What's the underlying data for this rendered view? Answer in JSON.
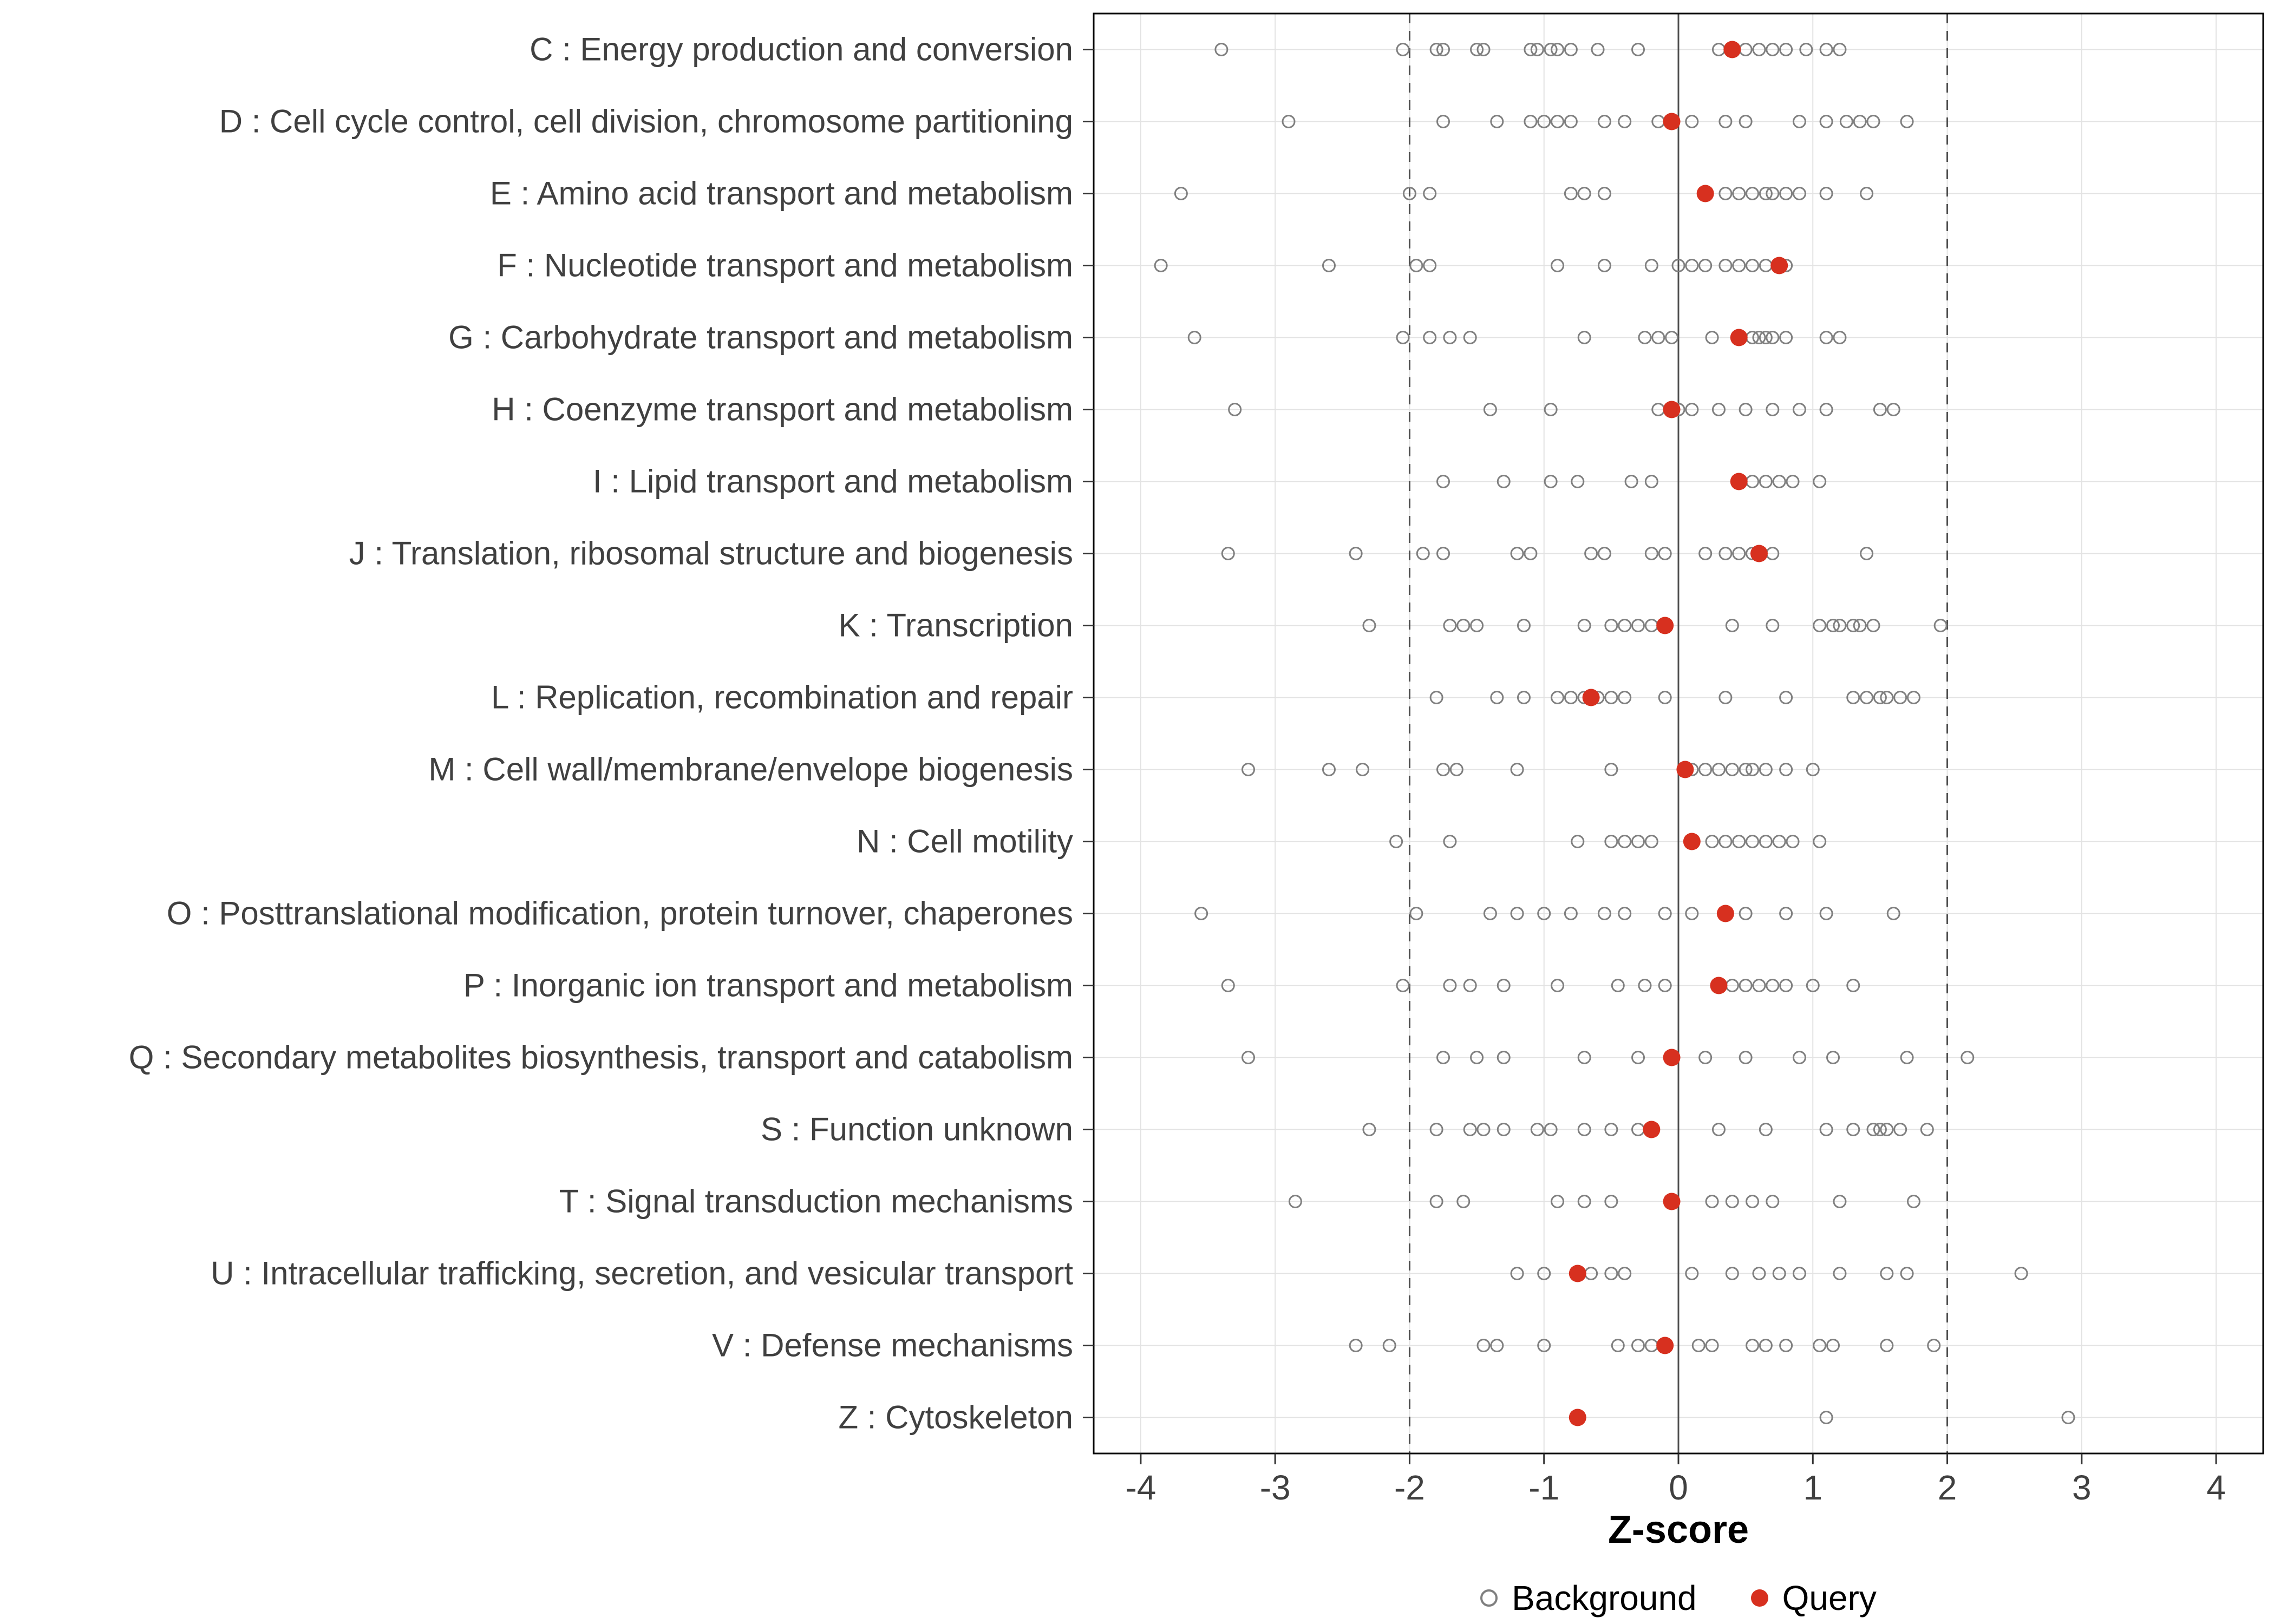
{
  "chart_data": {
    "type": "scatter",
    "variant": "strip-plot",
    "title": "",
    "xlabel": "Z-score",
    "xlim": [
      -4.35,
      4.35
    ],
    "xticks": [
      -4,
      -3,
      -2,
      -1,
      0,
      1,
      2,
      3,
      4
    ],
    "grid": true,
    "reference_lines": {
      "solid": [
        0
      ],
      "dashed": [
        -2,
        2
      ]
    },
    "legend": {
      "position": "bottom",
      "items": [
        {
          "label": "Background",
          "marker": "open-circle",
          "color": "#7F7F7F"
        },
        {
          "label": "Query",
          "marker": "filled-circle",
          "color": "#D7301F"
        }
      ]
    },
    "colors": {
      "background_point": "#7F7F7F",
      "query_point": "#D7301F",
      "grid": "#E3E3E3",
      "panel_border": "#000000",
      "reference": "#4D4D4D",
      "axis_text": "#404040",
      "tick": "#333333"
    },
    "rows": [
      {
        "label": "C : Energy production and conversion",
        "background": [
          -3.4,
          -2.05,
          -1.8,
          -1.75,
          -1.5,
          -1.45,
          -1.1,
          -1.05,
          -0.95,
          -0.9,
          -0.8,
          -0.6,
          -0.3,
          0.3,
          0.5,
          0.6,
          0.7,
          0.8,
          0.95,
          1.1,
          1.2
        ],
        "query": 0.4
      },
      {
        "label": "D : Cell cycle control, cell division, chromosome partitioning",
        "background": [
          -2.9,
          -1.75,
          -1.35,
          -1.1,
          -1.0,
          -0.9,
          -0.8,
          -0.55,
          -0.4,
          -0.15,
          0.1,
          0.35,
          0.5,
          0.9,
          1.1,
          1.25,
          1.35,
          1.45,
          1.7
        ],
        "query": -0.05
      },
      {
        "label": "E : Amino acid transport and metabolism",
        "background": [
          -3.7,
          -2.0,
          -1.85,
          -0.8,
          -0.7,
          -0.55,
          0.35,
          0.45,
          0.55,
          0.65,
          0.7,
          0.8,
          0.9,
          1.1,
          1.4
        ],
        "query": 0.2
      },
      {
        "label": "F : Nucleotide transport and metabolism",
        "background": [
          -3.85,
          -2.6,
          -1.95,
          -1.85,
          -0.9,
          -0.55,
          -0.2,
          0.0,
          0.1,
          0.2,
          0.35,
          0.45,
          0.55,
          0.65,
          0.8
        ],
        "query": 0.75
      },
      {
        "label": "G : Carbohydrate transport and metabolism",
        "background": [
          -3.6,
          -2.05,
          -1.85,
          -1.7,
          -1.55,
          -0.7,
          -0.25,
          -0.15,
          -0.05,
          0.25,
          0.45,
          0.55,
          0.6,
          0.65,
          0.7,
          0.8,
          1.1,
          1.2
        ],
        "query": 0.45
      },
      {
        "label": "H : Coenzyme transport and metabolism",
        "background": [
          -3.3,
          -1.4,
          -0.95,
          -0.15,
          0.0,
          0.1,
          0.3,
          0.5,
          0.7,
          0.9,
          1.1,
          1.5,
          1.6
        ],
        "query": -0.05
      },
      {
        "label": "I : Lipid transport and metabolism",
        "background": [
          -1.75,
          -1.3,
          -0.95,
          -0.75,
          -0.35,
          -0.2,
          0.55,
          0.65,
          0.75,
          0.85,
          1.05
        ],
        "query": 0.45
      },
      {
        "label": "J : Translation, ribosomal structure and biogenesis",
        "background": [
          -3.35,
          -2.4,
          -1.9,
          -1.75,
          -1.2,
          -1.1,
          -0.65,
          -0.55,
          -0.2,
          -0.1,
          0.2,
          0.35,
          0.45,
          0.55,
          0.7,
          1.4
        ],
        "query": 0.6
      },
      {
        "label": "K : Transcription",
        "background": [
          -2.3,
          -1.7,
          -1.6,
          -1.5,
          -1.15,
          -0.7,
          -0.5,
          -0.4,
          -0.3,
          -0.2,
          -0.1,
          0.4,
          0.7,
          1.05,
          1.15,
          1.2,
          1.3,
          1.35,
          1.45,
          1.95
        ],
        "query": -0.1
      },
      {
        "label": "L : Replication, recombination and repair",
        "background": [
          -1.8,
          -1.35,
          -1.15,
          -0.9,
          -0.8,
          -0.7,
          -0.6,
          -0.5,
          -0.4,
          -0.1,
          0.35,
          0.8,
          1.3,
          1.4,
          1.5,
          1.55,
          1.65,
          1.75
        ],
        "query": -0.65
      },
      {
        "label": "M : Cell wall/membrane/envelope biogenesis",
        "background": [
          -3.2,
          -2.6,
          -2.35,
          -1.75,
          -1.65,
          -1.2,
          -0.5,
          0.1,
          0.2,
          0.3,
          0.4,
          0.5,
          0.55,
          0.65,
          0.8,
          1.0
        ],
        "query": 0.05
      },
      {
        "label": "N : Cell motility",
        "background": [
          -2.1,
          -1.7,
          -0.75,
          -0.5,
          -0.4,
          -0.3,
          -0.2,
          0.25,
          0.35,
          0.45,
          0.55,
          0.65,
          0.75,
          0.85,
          1.05
        ],
        "query": 0.1
      },
      {
        "label": "O : Posttranslational modification, protein turnover, chaperones",
        "background": [
          -3.55,
          -1.95,
          -1.4,
          -1.2,
          -1.0,
          -0.8,
          -0.55,
          -0.4,
          -0.1,
          0.1,
          0.5,
          0.8,
          1.1,
          1.6
        ],
        "query": 0.35
      },
      {
        "label": "P : Inorganic ion transport and metabolism",
        "background": [
          -3.35,
          -2.05,
          -1.7,
          -1.55,
          -1.3,
          -0.9,
          -0.45,
          -0.25,
          -0.1,
          0.4,
          0.5,
          0.6,
          0.7,
          0.8,
          1.0,
          1.3
        ],
        "query": 0.3
      },
      {
        "label": "Q : Secondary metabolites biosynthesis, transport and catabolism",
        "background": [
          -3.2,
          -1.75,
          -1.5,
          -1.3,
          -0.7,
          -0.3,
          0.2,
          0.5,
          0.9,
          1.15,
          1.7,
          2.15
        ],
        "query": -0.05
      },
      {
        "label": "S : Function unknown",
        "background": [
          -2.3,
          -1.8,
          -1.55,
          -1.45,
          -1.3,
          -1.05,
          -0.95,
          -0.7,
          -0.5,
          -0.3,
          -0.2,
          0.3,
          0.65,
          1.1,
          1.3,
          1.45,
          1.5,
          1.55,
          1.65,
          1.85
        ],
        "query": -0.2
      },
      {
        "label": "T : Signal transduction mechanisms",
        "background": [
          -2.85,
          -1.8,
          -1.6,
          -0.9,
          -0.7,
          -0.5,
          0.25,
          0.4,
          0.55,
          0.7,
          1.2,
          1.75
        ],
        "query": -0.05
      },
      {
        "label": "U : Intracellular trafficking, secretion, and vesicular transport",
        "background": [
          -1.2,
          -1.0,
          -0.65,
          -0.5,
          -0.4,
          0.1,
          0.4,
          0.6,
          0.75,
          0.9,
          1.2,
          1.55,
          1.7,
          2.55
        ],
        "query": -0.75
      },
      {
        "label": "V : Defense mechanisms",
        "background": [
          -2.4,
          -2.15,
          -1.45,
          -1.35,
          -1.0,
          -0.45,
          -0.3,
          -0.2,
          0.15,
          0.25,
          0.55,
          0.65,
          0.8,
          1.05,
          1.15,
          1.55,
          1.9
        ],
        "query": -0.1
      },
      {
        "label": "Z : Cytoskeleton",
        "background": [
          1.1,
          2.9
        ],
        "query": -0.75
      }
    ]
  }
}
